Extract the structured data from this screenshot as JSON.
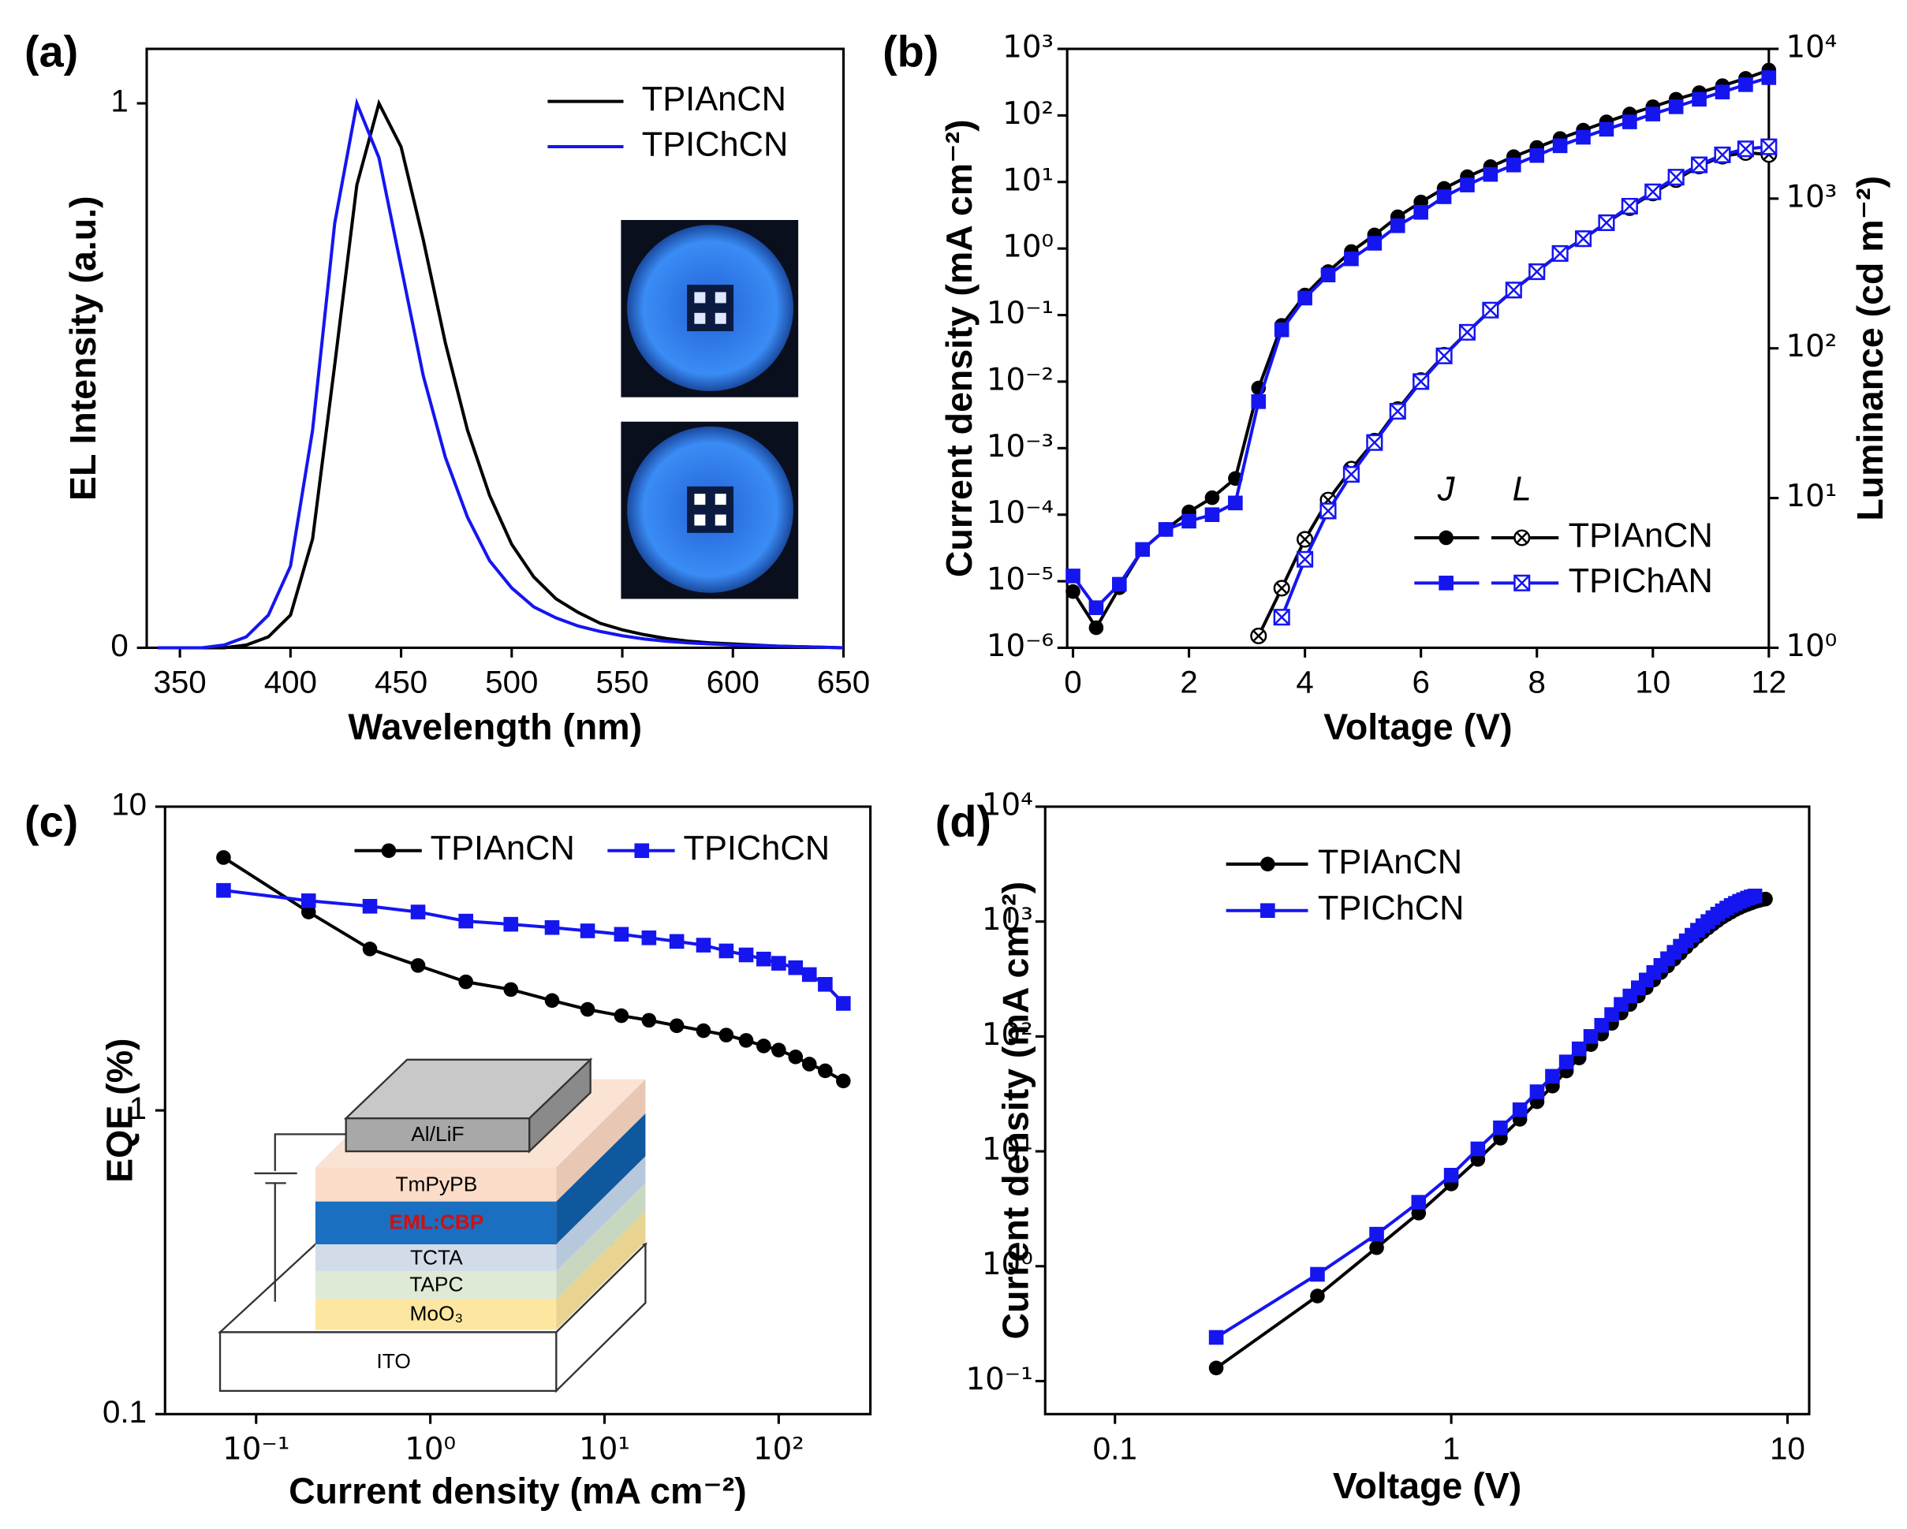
{
  "chart_data": [
    {
      "type": "line",
      "panel": "(a)",
      "xlabel": "Wavelength (nm)",
      "ylabel": "EL Intensity (a.u.)",
      "xlim": [
        335,
        650
      ],
      "ylim": [
        0,
        1.1
      ],
      "xticks": [
        350,
        400,
        450,
        500,
        550,
        600,
        650
      ],
      "yticks": [
        0,
        1
      ],
      "x": [
        340,
        350,
        360,
        370,
        380,
        390,
        400,
        410,
        420,
        430,
        440,
        450,
        460,
        470,
        480,
        490,
        500,
        510,
        520,
        530,
        540,
        550,
        560,
        570,
        580,
        590,
        600,
        610,
        620,
        630,
        640,
        650
      ],
      "series": [
        {
          "name": "TPIAnCN",
          "color": "#000000",
          "values": [
            0,
            0,
            0,
            0,
            0.005,
            0.02,
            0.06,
            0.2,
            0.52,
            0.85,
            1,
            0.92,
            0.75,
            0.56,
            0.4,
            0.28,
            0.19,
            0.13,
            0.09,
            0.065,
            0.045,
            0.033,
            0.024,
            0.017,
            0.012,
            0.009,
            0.007,
            0.005,
            0.003,
            0.002,
            0.001,
            0
          ]
        },
        {
          "name": "TPIChCN",
          "color": "#1515f0",
          "values": [
            0,
            0,
            0,
            0.005,
            0.02,
            0.06,
            0.15,
            0.4,
            0.78,
            1,
            0.9,
            0.7,
            0.5,
            0.35,
            0.24,
            0.16,
            0.11,
            0.075,
            0.055,
            0.04,
            0.03,
            0.022,
            0.016,
            0.012,
            0.009,
            0.007,
            0.005,
            0.004,
            0.003,
            0.002,
            0.001,
            0
          ]
        }
      ]
    },
    {
      "type": "line",
      "panel": "(b)",
      "xlabel": "Voltage (V)",
      "ylabel": "Current density (mA cm⁻²)",
      "y2label": "Luminance (cd m⁻²)",
      "xlim": [
        -0.1,
        12
      ],
      "ylim": [
        1e-06,
        1000
      ],
      "yscale": "log",
      "y2lim": [
        1,
        10000
      ],
      "y2scale": "log",
      "xticks": [
        0,
        2,
        4,
        6,
        8,
        10,
        12
      ],
      "yticks": [
        {
          "value": 1e-06,
          "label": "10⁻⁶"
        },
        {
          "value": 1e-05,
          "label": "10⁻⁵"
        },
        {
          "value": 0.0001,
          "label": "10⁻⁴"
        },
        {
          "value": 0.001,
          "label": "10⁻³"
        },
        {
          "value": 0.01,
          "label": "10⁻²"
        },
        {
          "value": 0.1,
          "label": "10⁻¹"
        },
        {
          "value": 1,
          "label": "10⁰"
        },
        {
          "value": 10,
          "label": "10¹"
        },
        {
          "value": 100,
          "label": "10²"
        },
        {
          "value": 1000,
          "label": "10³"
        }
      ],
      "y2ticks": [
        {
          "value": 1,
          "label": "10⁰"
        },
        {
          "value": 10,
          "label": "10¹"
        },
        {
          "value": 100,
          "label": "10²"
        },
        {
          "value": 1000,
          "label": "10³"
        },
        {
          "value": 10000,
          "label": "10⁴"
        }
      ],
      "legend_headers": [
        "J",
        "L"
      ],
      "x": [
        0,
        0.4,
        0.8,
        1.2,
        1.6,
        2,
        2.4,
        2.8,
        3.2,
        3.6,
        4,
        4.4,
        4.8,
        5.2,
        5.6,
        6,
        6.4,
        6.8,
        7.2,
        7.6,
        8,
        8.4,
        8.8,
        9.2,
        9.6,
        10,
        10.4,
        10.8,
        11.2,
        11.6,
        12
      ],
      "series": [
        {
          "name": "TPIAnCN",
          "color": "#000000",
          "marker": "circle",
          "values": [
            7e-06,
            2e-06,
            8e-06,
            3e-05,
            6e-05,
            0.00011,
            0.00018,
            0.00035,
            0.008,
            0.07,
            0.2,
            0.45,
            0.9,
            1.6,
            3,
            5,
            8,
            12,
            17,
            24,
            33,
            45,
            60,
            80,
            105,
            135,
            175,
            220,
            280,
            360,
            480
          ]
        },
        {
          "name": "TPIChAN",
          "color": "#1515f0",
          "marker": "square",
          "values": [
            1.2e-05,
            4e-06,
            9e-06,
            3e-05,
            6e-05,
            8e-05,
            0.0001,
            0.00015,
            0.005,
            0.06,
            0.18,
            0.4,
            0.7,
            1.2,
            2.2,
            3.5,
            6,
            9,
            13,
            18,
            25,
            35,
            47,
            62,
            80,
            105,
            135,
            175,
            225,
            290,
            370
          ]
        },
        {
          "color": "#000000",
          "marker": "circle-x",
          "axis": "y2",
          "values": [
            null,
            null,
            null,
            null,
            null,
            null,
            null,
            null,
            1.2,
            2.5,
            5.3,
            9.7,
            15.6,
            24,
            39,
            61,
            90,
            128,
            180,
            245,
            325,
            430,
            540,
            690,
            870,
            1090,
            1340,
            1650,
            1920,
            2030,
            1970
          ]
        },
        {
          "color": "#1515f0",
          "marker": "square-x",
          "axis": "y2",
          "values": [
            null,
            null,
            null,
            null,
            null,
            null,
            null,
            null,
            null,
            1.6,
            3.9,
            8.2,
            14.4,
            23.5,
            38,
            60,
            89,
            128,
            180,
            245,
            325,
            430,
            540,
            690,
            890,
            1110,
            1390,
            1680,
            1960,
            2150,
            2220
          ]
        }
      ]
    },
    {
      "type": "line",
      "panel": "(c)",
      "xlabel": "Current density (mA cm⁻²)",
      "ylabel": "EQE (%)",
      "xlim": [
        0.03,
        336
      ],
      "xscale": "log",
      "ylim": [
        0.1,
        10
      ],
      "yscale": "log",
      "xticks": [
        {
          "value": 0.1,
          "label": "10⁻¹"
        },
        {
          "value": 1,
          "label": "10⁰"
        },
        {
          "value": 10,
          "label": "10¹"
        },
        {
          "value": 100,
          "label": "10²"
        }
      ],
      "yticks": [
        0.1,
        1,
        10
      ],
      "annotations": [
        "Al/LiF",
        "TmPyPB",
        "EML:CBP",
        "TCTA",
        "TAPC",
        "MoO₃",
        "ITO"
      ],
      "x": [
        0.065,
        0.2,
        0.45,
        0.85,
        1.6,
        2.9,
        5,
        8,
        12.5,
        18,
        26,
        37,
        50,
        65,
        82,
        100,
        125,
        150,
        185,
        235
      ],
      "series": [
        {
          "name": "TPIAnCN",
          "color": "#000000",
          "marker": "circle",
          "values": [
            6.8,
            4.5,
            3.4,
            3.0,
            2.65,
            2.5,
            2.3,
            2.15,
            2.05,
            1.98,
            1.9,
            1.83,
            1.77,
            1.7,
            1.63,
            1.58,
            1.5,
            1.42,
            1.35,
            1.25
          ]
        },
        {
          "name": "TPIChCN",
          "color": "#1515f0",
          "marker": "square",
          "values": [
            5.3,
            4.9,
            4.7,
            4.5,
            4.2,
            4.1,
            4.0,
            3.9,
            3.8,
            3.7,
            3.6,
            3.5,
            3.35,
            3.25,
            3.15,
            3.05,
            2.95,
            2.8,
            2.6,
            2.25
          ]
        }
      ]
    },
    {
      "type": "line",
      "panel": "(d)",
      "xlabel": "Voltage (V)",
      "ylabel": "Current density (mA cm⁻²)",
      "xlim": [
        0.062,
        11.6
      ],
      "xscale": "log",
      "ylim": [
        0.0516,
        10000
      ],
      "yscale": "log",
      "xticks": [
        0.1,
        1,
        10
      ],
      "yticks": [
        {
          "value": 0.1,
          "label": "10⁻¹"
        },
        {
          "value": 1,
          "label": "10⁰"
        },
        {
          "value": 10,
          "label": "10¹"
        },
        {
          "value": 100,
          "label": "10²"
        },
        {
          "value": 1000,
          "label": "10³"
        },
        {
          "value": 10000,
          "label": "10⁴"
        }
      ],
      "x": [
        0.2,
        0.4,
        0.6,
        0.8,
        1,
        1.2,
        1.4,
        1.6,
        1.8,
        2,
        2.2,
        2.4,
        2.6,
        2.8,
        3,
        3.2,
        3.4,
        3.6,
        3.8,
        4,
        4.2,
        4.4,
        4.6,
        4.8,
        5,
        5.2,
        5.4,
        5.6,
        5.8,
        6,
        6.2,
        6.4,
        6.6,
        6.8,
        7,
        7.2,
        7.4,
        7.6,
        7.8,
        8,
        8.2,
        8.4,
        8.6
      ],
      "series": [
        {
          "name": "TPIAnCN",
          "color": "#000000",
          "marker": "circle",
          "values": [
            0.13,
            0.55,
            1.45,
            2.9,
            5.2,
            8.5,
            13,
            19,
            27,
            37,
            50,
            65,
            85,
            105,
            130,
            160,
            190,
            225,
            265,
            310,
            360,
            410,
            470,
            530,
            600,
            670,
            740,
            810,
            880,
            950,
            1020,
            1090,
            1150,
            1210,
            1270,
            1320,
            1370,
            1410,
            1450,
            1490,
            1520,
            1550,
            1570
          ]
        },
        {
          "name": "TPIChCN",
          "color": "#1515f0",
          "marker": "square",
          "values": [
            0.24,
            0.85,
            1.9,
            3.6,
            6.2,
            10.5,
            16,
            23,
            33,
            45,
            60,
            78,
            100,
            125,
            155,
            190,
            225,
            265,
            310,
            360,
            415,
            475,
            540,
            610,
            680,
            760,
            840,
            920,
            1000,
            1080,
            1160,
            1240,
            1310,
            1380,
            1440,
            1500,
            1550,
            1600,
            1640,
            1670,
            null,
            null,
            null
          ]
        }
      ]
    }
  ]
}
